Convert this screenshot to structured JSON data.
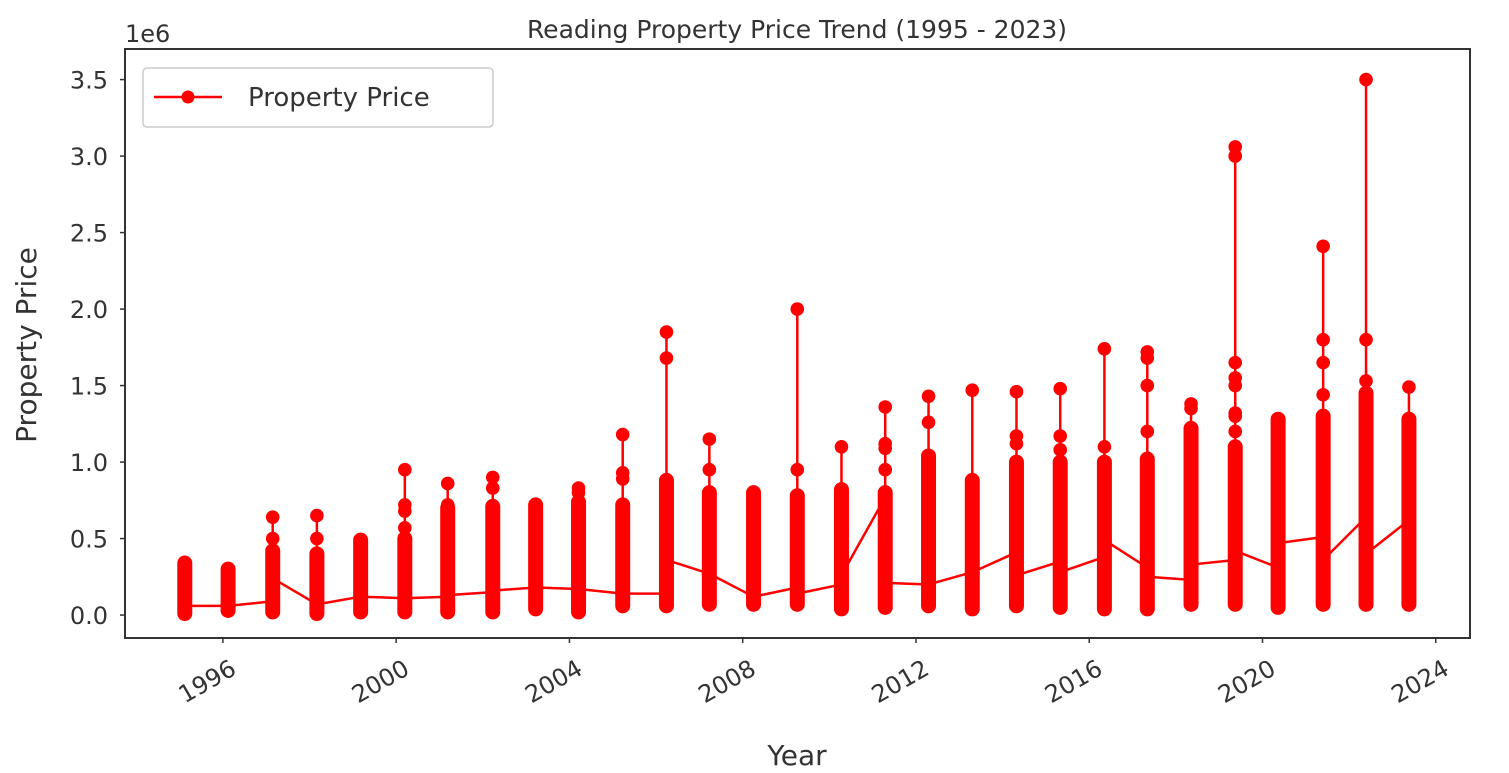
{
  "chart_data": {
    "type": "line",
    "title": "Reading Property Price Trend (1995 - 2023)",
    "xlabel": "Year",
    "ylabel": "Property Price",
    "y_scale_label": "1e6",
    "xlim": [
      1993.74,
      2024.79
    ],
    "ylim": [
      -150000,
      3700000
    ],
    "xticks": [
      1996,
      2000,
      2004,
      2008,
      2012,
      2016,
      2020,
      2024
    ],
    "xtick_labels": [
      "1996",
      "2000",
      "2004",
      "2008",
      "2012",
      "2016",
      "2020",
      "2024"
    ],
    "yticks": [
      0,
      500000,
      1000000,
      1500000,
      2000000,
      2500000,
      3000000,
      3500000
    ],
    "ytick_labels": [
      "0.0",
      "0.5",
      "1.0",
      "1.5",
      "2.0",
      "2.5",
      "3.0",
      "3.5"
    ],
    "grid": false,
    "legend": {
      "position": "upper-left",
      "label": "Property Price"
    },
    "color": "#ff0000",
    "marker": "circle",
    "series": [
      {
        "name": "Property Price",
        "clusters": [
          {
            "x": 1995.12,
            "min": 10000,
            "dense_max": 340000,
            "outliers": [],
            "first": 60000,
            "last": 60000
          },
          {
            "x": 1996.12,
            "min": 30000,
            "dense_max": 300000,
            "outliers": [],
            "first": 60000,
            "last": 60000
          },
          {
            "x": 1997.15,
            "min": 20000,
            "dense_max": 420000,
            "outliers": [
              500000,
              640000
            ],
            "first": 90000,
            "last": 240000
          },
          {
            "x": 1998.17,
            "min": 10000,
            "dense_max": 400000,
            "outliers": [
              500000,
              650000
            ],
            "first": 70000,
            "last": 70000
          },
          {
            "x": 1999.18,
            "min": 20000,
            "dense_max": 490000,
            "outliers": [],
            "first": 120000,
            "last": 120000
          },
          {
            "x": 2000.2,
            "min": 20000,
            "dense_max": 500000,
            "outliers": [
              570000,
              680000,
              720000,
              950000
            ],
            "first": 110000,
            "last": 110000
          },
          {
            "x": 2001.19,
            "min": 20000,
            "dense_max": 700000,
            "outliers": [
              720000,
              860000
            ],
            "first": 120000,
            "last": 130000
          },
          {
            "x": 2002.23,
            "min": 20000,
            "dense_max": 710000,
            "outliers": [
              830000,
              900000
            ],
            "first": 150000,
            "last": 160000
          },
          {
            "x": 2003.22,
            "min": 40000,
            "dense_max": 720000,
            "outliers": [],
            "first": 180000,
            "last": 180000
          },
          {
            "x": 2004.21,
            "min": 20000,
            "dense_max": 740000,
            "outliers": [
              800000,
              830000
            ],
            "first": 170000,
            "last": 170000
          },
          {
            "x": 2005.23,
            "min": 60000,
            "dense_max": 720000,
            "outliers": [
              890000,
              930000,
              1180000
            ],
            "first": 140000,
            "last": 140000
          },
          {
            "x": 2006.24,
            "min": 60000,
            "dense_max": 880000,
            "outliers": [
              1680000,
              1850000
            ],
            "first": 140000,
            "last": 360000
          },
          {
            "x": 2007.23,
            "min": 70000,
            "dense_max": 800000,
            "outliers": [
              950000,
              1150000
            ],
            "first": 270000,
            "last": 270000
          },
          {
            "x": 2008.25,
            "min": 70000,
            "dense_max": 800000,
            "outliers": [],
            "first": 120000,
            "last": 120000
          },
          {
            "x": 2009.26,
            "min": 70000,
            "dense_max": 780000,
            "outliers": [
              950000,
              2000000
            ],
            "first": 180000,
            "last": 140000
          },
          {
            "x": 2010.28,
            "min": 40000,
            "dense_max": 820000,
            "outliers": [
              1100000
            ],
            "first": 200000,
            "last": 260000
          },
          {
            "x": 2011.29,
            "min": 50000,
            "dense_max": 800000,
            "outliers": [
              950000,
              1090000,
              1120000,
              1360000
            ],
            "first": 770000,
            "last": 210000
          },
          {
            "x": 2012.29,
            "min": 60000,
            "dense_max": 1040000,
            "outliers": [
              1260000,
              1430000
            ],
            "first": 200000,
            "last": 200000
          },
          {
            "x": 2013.3,
            "min": 40000,
            "dense_max": 880000,
            "outliers": [
              1470000
            ],
            "first": 280000,
            "last": 280000
          },
          {
            "x": 2014.32,
            "min": 60000,
            "dense_max": 1000000,
            "outliers": [
              1120000,
              1170000,
              1460000
            ],
            "first": 410000,
            "last": 260000
          },
          {
            "x": 2015.33,
            "min": 50000,
            "dense_max": 1000000,
            "outliers": [
              1080000,
              1170000,
              1480000
            ],
            "first": 350000,
            "last": 280000
          },
          {
            "x": 2016.35,
            "min": 40000,
            "dense_max": 1000000,
            "outliers": [
              1100000,
              1740000
            ],
            "first": 380000,
            "last": 490000
          },
          {
            "x": 2017.34,
            "min": 40000,
            "dense_max": 1020000,
            "outliers": [
              1200000,
              1500000,
              1680000,
              1720000
            ],
            "first": 310000,
            "last": 250000
          },
          {
            "x": 2018.35,
            "min": 70000,
            "dense_max": 1220000,
            "outliers": [
              1350000,
              1380000
            ],
            "first": 230000,
            "last": 330000
          },
          {
            "x": 2019.37,
            "min": 70000,
            "dense_max": 1100000,
            "outliers": [
              1200000,
              1300000,
              1320000,
              1500000,
              1550000,
              1650000,
              3000000,
              3060000
            ],
            "first": 360000,
            "last": 420000
          },
          {
            "x": 2020.36,
            "min": 50000,
            "dense_max": 1280000,
            "outliers": [],
            "first": 310000,
            "last": 470000
          },
          {
            "x": 2021.4,
            "min": 70000,
            "dense_max": 1300000,
            "outliers": [
              1440000,
              1650000,
              1800000,
              2410000
            ],
            "first": 510000,
            "last": 360000
          },
          {
            "x": 2022.39,
            "min": 70000,
            "dense_max": 1450000,
            "outliers": [
              1530000,
              1800000,
              3500000
            ],
            "first": 640000,
            "last": 400000
          },
          {
            "x": 2023.38,
            "min": 70000,
            "dense_max": 1280000,
            "outliers": [
              1490000
            ],
            "first": 620000,
            "last": 620000
          }
        ]
      }
    ]
  }
}
